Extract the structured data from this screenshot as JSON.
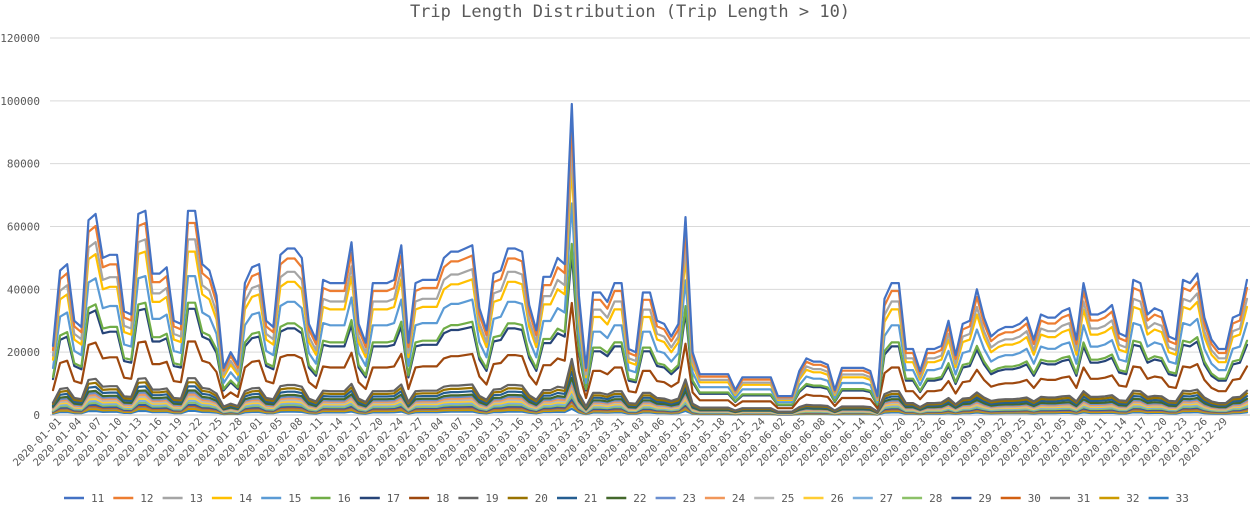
{
  "chart_data": {
    "type": "line",
    "title": "Trip Length Distribution (Trip Length > 10)",
    "xlabel": "",
    "ylabel": "",
    "ylim": [
      0,
      120000
    ],
    "yticks": [
      "0",
      "20000",
      "40000",
      "60000",
      "80000",
      "100000",
      "120000"
    ],
    "grid": true,
    "legend_position": "bottom",
    "x_tick_labels": [
      "2020-01-01",
      "2020-01-04",
      "2020-01-07",
      "2020-01-10",
      "2020-01-13",
      "2020-01-16",
      "2020-01-19",
      "2020-01-22",
      "2020-01-25",
      "2020-01-28",
      "2020-02-01",
      "2020-02-05",
      "2020-02-08",
      "2020-02-11",
      "2020-02-14",
      "2020-02-17",
      "2020-02-20",
      "2020-02-24",
      "2020-02-27",
      "2020-03-04",
      "2020-03-07",
      "2020-03-10",
      "2020-03-13",
      "2020-03-16",
      "2020-03-19",
      "2020-03-22",
      "2020-03-25",
      "2020-03-28",
      "2020-03-31",
      "2020-04-03",
      "2020-04-06",
      "2020-05-12",
      "2020-05-15",
      "2020-05-18",
      "2020-05-21",
      "2020-05-24",
      "2020-06-02",
      "2020-06-05",
      "2020-06-08",
      "2020-06-11",
      "2020-06-14",
      "2020-06-17",
      "2020-06-20",
      "2020-06-23",
      "2020-06-26",
      "2020-06-29",
      "2020-09-19",
      "2020-09-22",
      "2020-09-25",
      "2020-12-02",
      "2020-12-05",
      "2020-12-08",
      "2020-12-11",
      "2020-12-14",
      "2020-12-17",
      "2020-12-20",
      "2020-12-23",
      "2020-12-26",
      "2020-12-29"
    ],
    "base_profile": [
      22000,
      46000,
      48000,
      30000,
      28000,
      62000,
      64000,
      50000,
      51000,
      51000,
      33000,
      32000,
      64000,
      65000,
      45000,
      45000,
      47000,
      30000,
      29000,
      65000,
      65000,
      48000,
      46000,
      38000,
      15000,
      20000,
      16000,
      42000,
      47000,
      48000,
      30000,
      28000,
      51000,
      53000,
      53000,
      50000,
      29000,
      24000,
      43000,
      42000,
      42000,
      42000,
      55000,
      29000,
      23000,
      42000,
      42000,
      42000,
      43000,
      54000,
      23000,
      42000,
      43000,
      43000,
      43000,
      50000,
      52000,
      52000,
      53000,
      54000,
      34000,
      27000,
      45000,
      46000,
      53000,
      53000,
      52000,
      35000,
      27000,
      44000,
      44000,
      50000,
      48000,
      99000,
      38000,
      15000,
      39000,
      39000,
      36000,
      42000,
      42000,
      21000,
      20000,
      39000,
      39000,
      30000,
      29000,
      25000,
      29000,
      63000,
      20000,
      13000,
      13000,
      13000,
      13000,
      13000,
      8000,
      12000,
      12000,
      12000,
      12000,
      12000,
      6000,
      6000,
      6000,
      14000,
      18000,
      17000,
      17000,
      16000,
      8000,
      15000,
      15000,
      15000,
      15000,
      14000,
      6000,
      37000,
      42000,
      42000,
      21000,
      21000,
      14000,
      21000,
      21000,
      22000,
      30000,
      19000,
      29000,
      30000,
      40000,
      31000,
      25000,
      27000,
      28000,
      28000,
      29000,
      31000,
      24000,
      32000,
      31000,
      31000,
      33000,
      34000,
      24000,
      42000,
      32000,
      32000,
      33000,
      35000,
      26000,
      25000,
      43000,
      42000,
      32000,
      34000,
      33000,
      25000,
      24000,
      43000,
      42000,
      45000,
      31000,
      24000,
      21000,
      21000,
      31000,
      32000,
      43000
    ],
    "series": [
      {
        "name": "11",
        "color": "#4472C4",
        "scale": 1.0
      },
      {
        "name": "12",
        "color": "#ED7D31",
        "scale": 0.94
      },
      {
        "name": "13",
        "color": "#A5A5A5",
        "scale": 0.86
      },
      {
        "name": "14",
        "color": "#FFC000",
        "scale": 0.8
      },
      {
        "name": "15",
        "color": "#5B9BD5",
        "scale": 0.68
      },
      {
        "name": "16",
        "color": "#70AD47",
        "scale": 0.55
      },
      {
        "name": "17",
        "color": "#264478",
        "scale": 0.52
      },
      {
        "name": "18",
        "color": "#9E480E",
        "scale": 0.36
      },
      {
        "name": "19",
        "color": "#636363",
        "scale": 0.18
      },
      {
        "name": "20",
        "color": "#997300",
        "scale": 0.16
      },
      {
        "name": "21",
        "color": "#255E91",
        "scale": 0.14
      },
      {
        "name": "22",
        "color": "#43682B",
        "scale": 0.12
      },
      {
        "name": "23",
        "color": "#698ED0",
        "scale": 0.11
      },
      {
        "name": "24",
        "color": "#F1975A",
        "scale": 0.1
      },
      {
        "name": "25",
        "color": "#B7B7B7",
        "scale": 0.09
      },
      {
        "name": "26",
        "color": "#FFCD33",
        "scale": 0.08
      },
      {
        "name": "27",
        "color": "#7CAFDD",
        "scale": 0.07
      },
      {
        "name": "28",
        "color": "#8CC168",
        "scale": 0.06
      },
      {
        "name": "29",
        "color": "#335AA1",
        "scale": 0.05
      },
      {
        "name": "30",
        "color": "#D26012",
        "scale": 0.045
      },
      {
        "name": "31",
        "color": "#848484",
        "scale": 0.04
      },
      {
        "name": "32",
        "color": "#CC9A00",
        "scale": 0.03
      },
      {
        "name": "33",
        "color": "#327DC2",
        "scale": 0.02
      }
    ]
  }
}
